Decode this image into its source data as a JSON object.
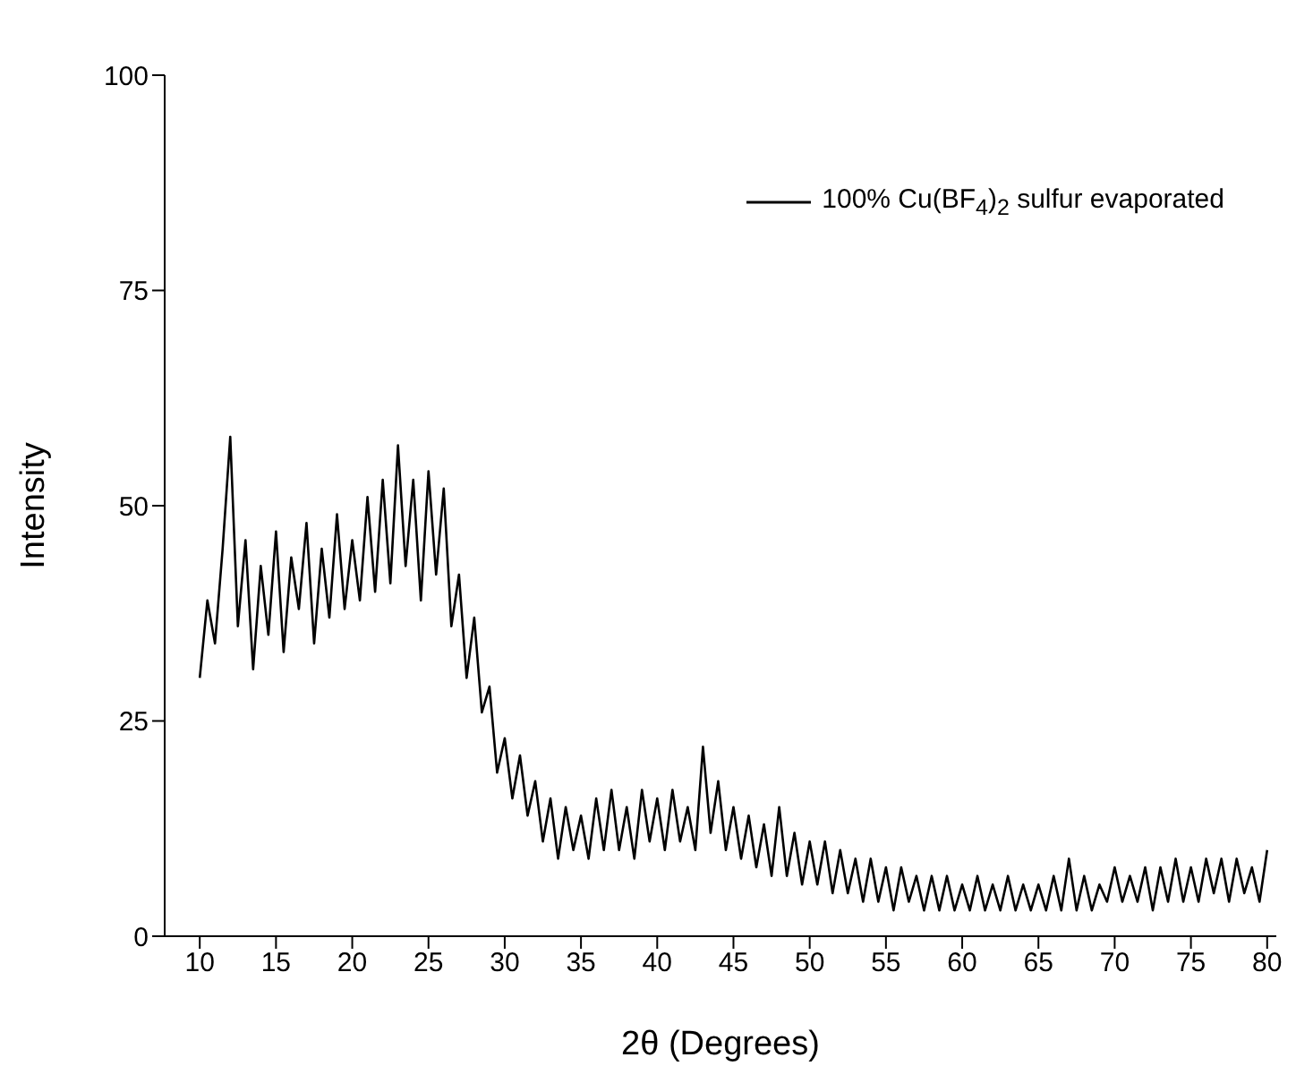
{
  "chart_data": {
    "type": "line",
    "xlabel": "2θ (Degrees)",
    "ylabel": "Intensity",
    "xlim": [
      7.7,
      80.6
    ],
    "ylim": [
      0,
      100
    ],
    "xticks": [
      10,
      15,
      20,
      25,
      30,
      35,
      40,
      45,
      50,
      55,
      60,
      65,
      70,
      75,
      80
    ],
    "yticks": [
      0,
      25,
      50,
      75,
      100
    ],
    "grid": false,
    "legend": "top right",
    "marker": "none",
    "line_style": "solid",
    "series": [
      {
        "name": "100% Cu(BF$_{4}$)$_{2}$ sulfur evaporated",
        "color": "#000000",
        "x": [
          10,
          10.5,
          11,
          11.5,
          12,
          12.5,
          13,
          13.5,
          14,
          14.5,
          15,
          15.5,
          16,
          16.5,
          17,
          17.5,
          18,
          18.5,
          19,
          19.5,
          20,
          20.5,
          21,
          21.5,
          22,
          22.5,
          23,
          23.5,
          24,
          24.5,
          25,
          25.5,
          26,
          26.5,
          27,
          27.5,
          28,
          28.5,
          29,
          29.5,
          30,
          30.5,
          31,
          31.5,
          32,
          32.5,
          33,
          33.5,
          34,
          34.5,
          35,
          35.5,
          36,
          36.5,
          37,
          37.5,
          38,
          38.5,
          39,
          39.5,
          40,
          40.5,
          41,
          41.5,
          42,
          42.5,
          43,
          43.5,
          44,
          44.5,
          45,
          45.5,
          46,
          46.5,
          47,
          47.5,
          48,
          48.5,
          49,
          49.5,
          50,
          50.5,
          51,
          51.5,
          52,
          52.5,
          53,
          53.5,
          54,
          54.5,
          55,
          55.5,
          56,
          56.5,
          57,
          57.5,
          58,
          58.5,
          59,
          59.5,
          60,
          60.5,
          61,
          61.5,
          62,
          62.5,
          63,
          63.5,
          64,
          64.5,
          65,
          65.5,
          66,
          66.5,
          67,
          67.5,
          68,
          68.5,
          69,
          69.5,
          70,
          70.5,
          71,
          71.5,
          72,
          72.5,
          73,
          73.5,
          74,
          74.5,
          75,
          75.5,
          76,
          76.5,
          77,
          77.5,
          78,
          78.5,
          79,
          79.5,
          80
        ],
        "values": [
          30,
          39,
          34,
          45,
          58,
          36,
          46,
          31,
          43,
          35,
          47,
          33,
          44,
          38,
          48,
          34,
          45,
          37,
          49,
          38,
          46,
          39,
          51,
          40,
          53,
          41,
          57,
          43,
          53,
          39,
          54,
          42,
          52,
          36,
          42,
          30,
          37,
          26,
          29,
          19,
          23,
          16,
          21,
          14,
          18,
          11,
          16,
          9,
          15,
          10,
          14,
          9,
          16,
          10,
          17,
          10,
          15,
          9,
          17,
          11,
          16,
          10,
          17,
          11,
          15,
          10,
          22,
          12,
          18,
          10,
          15,
          9,
          14,
          8,
          13,
          7,
          15,
          7,
          12,
          6,
          11,
          6,
          11,
          5,
          10,
          5,
          9,
          4,
          9,
          4,
          8,
          3,
          8,
          4,
          7,
          3,
          7,
          3,
          7,
          3,
          6,
          3,
          7,
          3,
          6,
          3,
          7,
          3,
          6,
          3,
          6,
          3,
          7,
          3,
          9,
          3,
          7,
          3,
          6,
          4,
          8,
          4,
          7,
          4,
          8,
          3,
          8,
          4,
          9,
          4,
          8,
          4,
          9,
          5,
          9,
          4,
          9,
          5,
          8,
          4,
          10
        ]
      }
    ]
  }
}
